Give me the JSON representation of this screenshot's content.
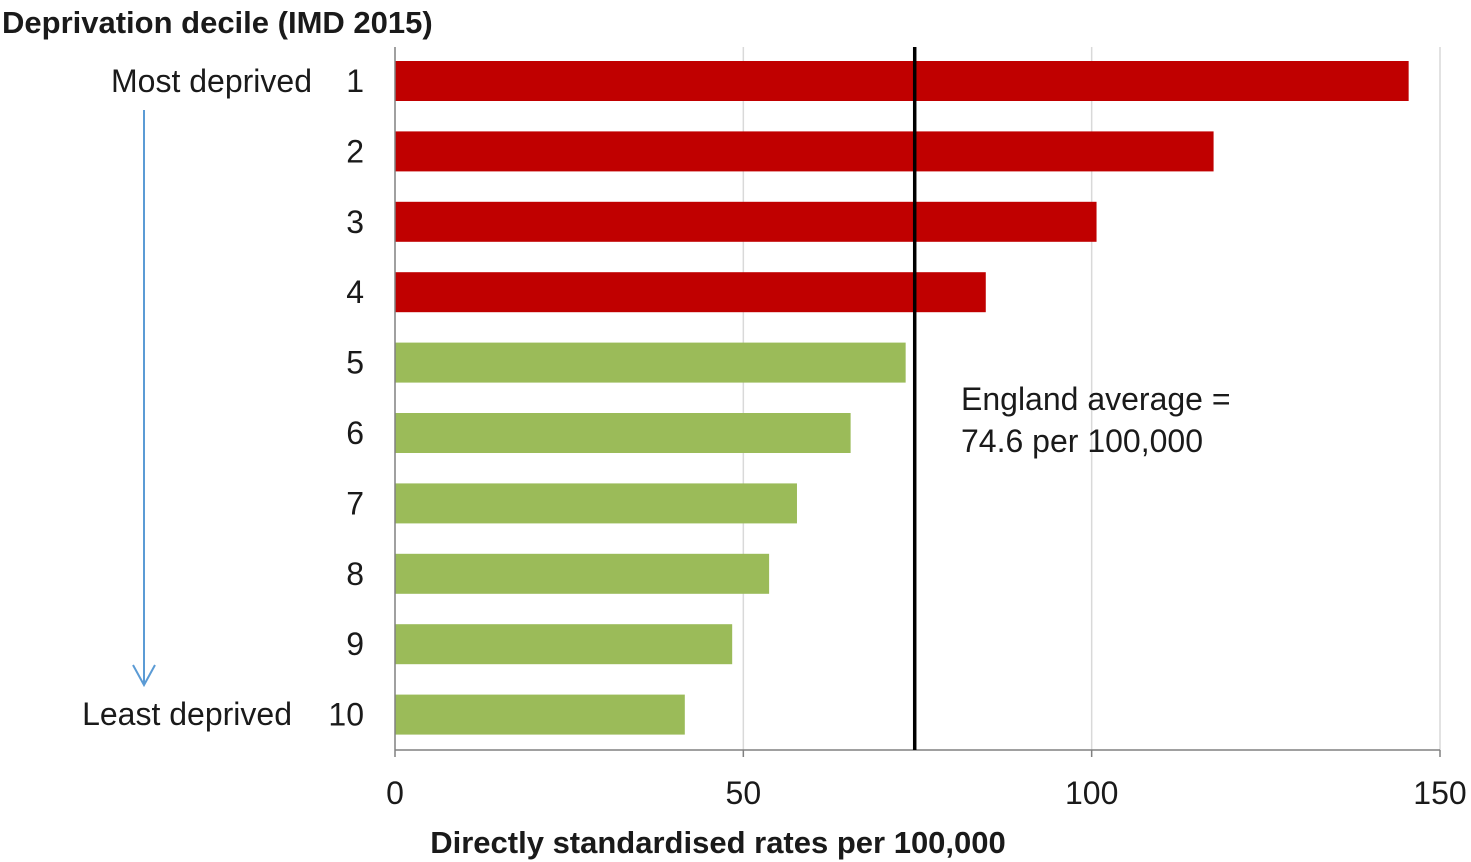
{
  "chart_data": {
    "type": "bar",
    "orientation": "horizontal",
    "title": "Deprivation decile (IMD 2015)",
    "xlabel": "Directly standardised rates per 100,000",
    "ylabel": "",
    "categories": [
      "1",
      "2",
      "3",
      "4",
      "5",
      "6",
      "7",
      "8",
      "9",
      "10"
    ],
    "values": [
      145.5,
      117.5,
      100.7,
      84.8,
      73.3,
      65.4,
      57.7,
      53.7,
      48.4,
      41.6
    ],
    "bar_colors": [
      "#c00000",
      "#c00000",
      "#c00000",
      "#c00000",
      "#9bbb59",
      "#9bbb59",
      "#9bbb59",
      "#9bbb59",
      "#9bbb59",
      "#9bbb59"
    ],
    "xlim": [
      0,
      150
    ],
    "xticks": [
      0,
      50,
      100,
      150
    ],
    "xtick_labels": [
      "0",
      "50",
      "100",
      "150"
    ],
    "grid": "vertical",
    "reference_line": {
      "value": 74.6,
      "color": "#000000",
      "label_lines": [
        "England average =",
        "74.6 per 100,000"
      ]
    },
    "side_labels": {
      "top": "Most deprived",
      "bottom": "Least deprived",
      "arrow_color": "#5b9bd5"
    }
  },
  "colors": {
    "above_average": "#c00000",
    "below_average": "#9bbb59",
    "gridline": "#d9d9d9",
    "axis": "#808080"
  }
}
